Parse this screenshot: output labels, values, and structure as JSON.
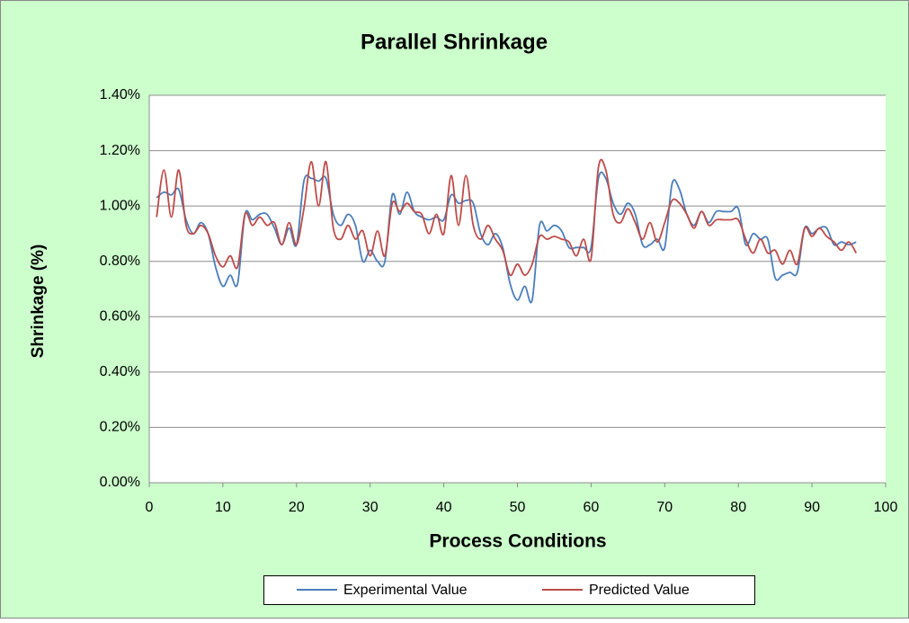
{
  "chart_data": {
    "type": "line",
    "title": "Parallel Shrinkage",
    "xlabel": "Process Conditions",
    "ylabel": "Shrinkage (%)",
    "x": [
      1,
      2,
      3,
      4,
      5,
      6,
      7,
      8,
      9,
      10,
      11,
      12,
      13,
      14,
      15,
      16,
      17,
      18,
      19,
      20,
      21,
      22,
      23,
      24,
      25,
      26,
      27,
      28,
      29,
      30,
      31,
      32,
      33,
      34,
      35,
      36,
      37,
      38,
      39,
      40,
      41,
      42,
      43,
      44,
      45,
      46,
      47,
      48,
      49,
      50,
      51,
      52,
      53,
      54,
      55,
      56,
      57,
      58,
      59,
      60,
      61,
      62,
      63,
      64,
      65,
      66,
      67,
      68,
      69,
      70,
      71,
      72,
      73,
      74,
      75,
      76,
      77,
      78,
      79,
      80,
      81,
      82,
      83,
      84,
      85,
      86,
      87,
      88,
      89,
      90,
      91,
      92,
      93,
      94,
      95,
      96
    ],
    "series": [
      {
        "name": "Experimental Value",
        "color": "#4a7ebb",
        "values": [
          1.03,
          1.05,
          1.04,
          1.06,
          0.95,
          0.9,
          0.94,
          0.9,
          0.78,
          0.71,
          0.75,
          0.72,
          0.97,
          0.95,
          0.97,
          0.97,
          0.92,
          0.86,
          0.92,
          0.86,
          1.09,
          1.1,
          1.09,
          1.1,
          0.97,
          0.93,
          0.97,
          0.93,
          0.8,
          0.84,
          0.8,
          0.8,
          1.04,
          0.97,
          1.05,
          0.98,
          0.96,
          0.95,
          0.96,
          0.95,
          1.04,
          1.01,
          1.02,
          1.01,
          0.9,
          0.86,
          0.9,
          0.85,
          0.72,
          0.66,
          0.71,
          0.66,
          0.93,
          0.91,
          0.93,
          0.91,
          0.85,
          0.85,
          0.85,
          0.85,
          1.1,
          1.1,
          1.01,
          0.97,
          1.01,
          0.97,
          0.86,
          0.86,
          0.88,
          0.85,
          1.08,
          1.06,
          0.97,
          0.93,
          0.98,
          0.94,
          0.98,
          0.98,
          0.98,
          0.99,
          0.86,
          0.9,
          0.88,
          0.88,
          0.74,
          0.75,
          0.76,
          0.76,
          0.92,
          0.9,
          0.92,
          0.92,
          0.86,
          0.87,
          0.86,
          0.87
        ]
      },
      {
        "name": "Predicted Value",
        "color": "#be4b48",
        "values": [
          0.96,
          1.13,
          0.96,
          1.13,
          0.93,
          0.9,
          0.93,
          0.9,
          0.82,
          0.78,
          0.82,
          0.78,
          0.97,
          0.93,
          0.96,
          0.93,
          0.94,
          0.86,
          0.94,
          0.86,
          0.99,
          1.16,
          1.0,
          1.16,
          0.92,
          0.88,
          0.93,
          0.88,
          0.91,
          0.82,
          0.91,
          0.82,
          1.01,
          0.98,
          1.01,
          0.98,
          0.97,
          0.9,
          0.97,
          0.9,
          1.11,
          0.93,
          1.11,
          0.93,
          0.88,
          0.93,
          0.88,
          0.84,
          0.75,
          0.79,
          0.75,
          0.79,
          0.89,
          0.88,
          0.89,
          0.88,
          0.87,
          0.82,
          0.88,
          0.81,
          1.14,
          1.13,
          0.97,
          0.94,
          0.99,
          0.94,
          0.88,
          0.94,
          0.87,
          0.94,
          1.02,
          1.01,
          0.97,
          0.92,
          0.98,
          0.93,
          0.95,
          0.95,
          0.95,
          0.95,
          0.88,
          0.83,
          0.88,
          0.83,
          0.84,
          0.79,
          0.84,
          0.79,
          0.92,
          0.89,
          0.92,
          0.89,
          0.87,
          0.84,
          0.87,
          0.83
        ]
      }
    ],
    "xlim": [
      0,
      100
    ],
    "xticks": [
      0,
      10,
      20,
      30,
      40,
      50,
      60,
      70,
      80,
      90,
      100
    ],
    "ylim": [
      0,
      1.4
    ],
    "yticks": [
      {
        "value": 0,
        "label": "0.00%"
      },
      {
        "value": 0.2,
        "label": "0.20%"
      },
      {
        "value": 0.4,
        "label": "0.40%"
      },
      {
        "value": 0.6,
        "label": "0.60%"
      },
      {
        "value": 0.8,
        "label": "0.80%"
      },
      {
        "value": 1.0,
        "label": "1.00%"
      },
      {
        "value": 1.2,
        "label": "1.20%"
      },
      {
        "value": 1.4,
        "label": "1.40%"
      }
    ],
    "grid": true,
    "legend": "bottom"
  }
}
